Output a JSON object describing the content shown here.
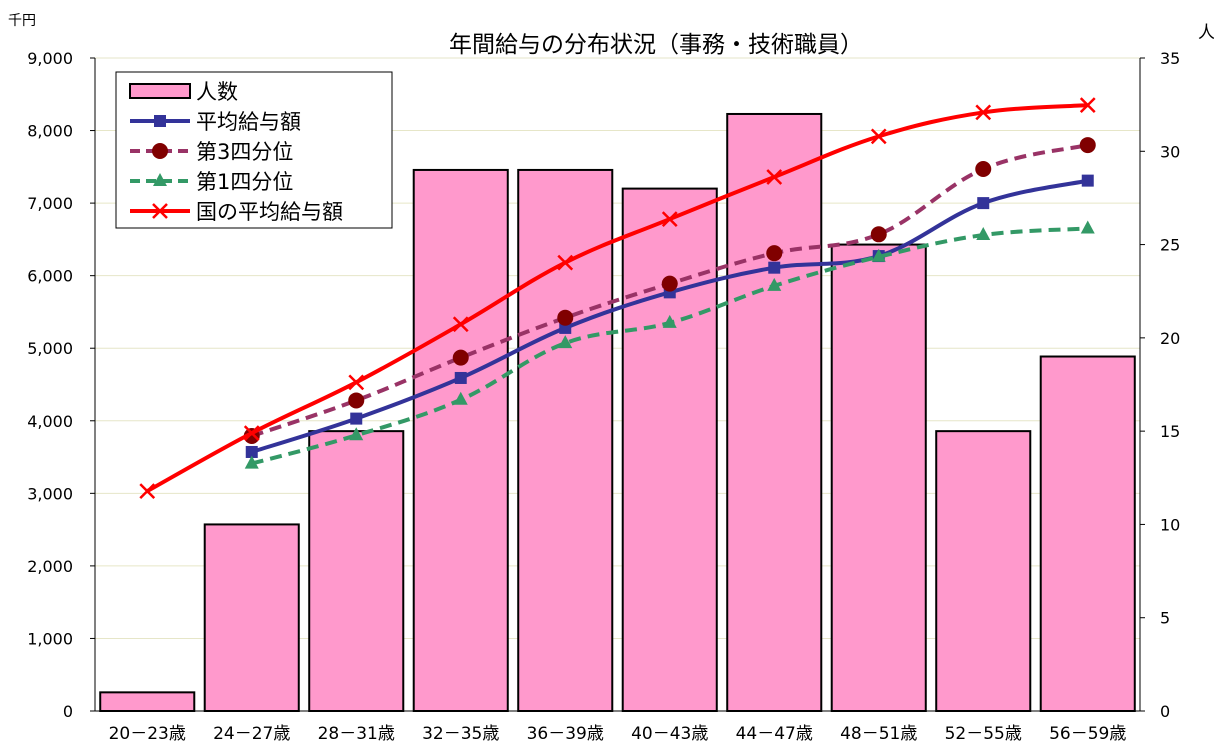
{
  "chart_data": {
    "type": "bar",
    "title": "年間給与の分布状況（事務・技術職員）",
    "y_left_unit": "千円",
    "y_right_unit": "人",
    "categories": [
      "20－23歳",
      "24－27歳",
      "28－31歳",
      "32－35歳",
      "36－39歳",
      "40－43歳",
      "44－47歳",
      "48－51歳",
      "52－55歳",
      "56－59歳"
    ],
    "y_left": {
      "min": 0,
      "max": 9000,
      "step": 1000,
      "tick_labels": [
        "0",
        "1,000",
        "2,000",
        "3,000",
        "4,000",
        "5,000",
        "6,000",
        "7,000",
        "8,000",
        "9,000"
      ]
    },
    "y_right": {
      "min": 0,
      "max": 35,
      "step": 5,
      "tick_labels": [
        "0",
        "5",
        "10",
        "15",
        "20",
        "25",
        "30",
        "35"
      ]
    },
    "grid": true,
    "legend_position": "top-left",
    "bar_series": {
      "name": "人数",
      "axis": "right",
      "color": "#ff99cc",
      "values": [
        1,
        10,
        15,
        29,
        29,
        28,
        32,
        25,
        15,
        19
      ]
    },
    "line_series": [
      {
        "name": "平均給与額",
        "axis": "left",
        "color": "#333399",
        "style": "solid",
        "marker": "square",
        "values": [
          null,
          3570,
          4030,
          4590,
          5280,
          5770,
          6110,
          6270,
          7000,
          7310
        ]
      },
      {
        "name": "第3四分位",
        "axis": "left",
        "color": "#993366",
        "style": "dashed",
        "marker": "circle",
        "values": [
          null,
          3790,
          4280,
          4870,
          5420,
          5890,
          6310,
          6570,
          7470,
          7800
        ]
      },
      {
        "name": "第1四分位",
        "axis": "left",
        "color": "#339966",
        "style": "dashed",
        "marker": "triangle",
        "values": [
          null,
          3410,
          3800,
          4290,
          5070,
          5350,
          5860,
          6260,
          6560,
          6650
        ]
      },
      {
        "name": "国の平均給与額",
        "axis": "left",
        "color": "#ff0000",
        "style": "solid",
        "marker": "x",
        "values": [
          3030,
          3830,
          4530,
          5330,
          6180,
          6780,
          7360,
          7920,
          8250,
          8350
        ]
      }
    ]
  }
}
